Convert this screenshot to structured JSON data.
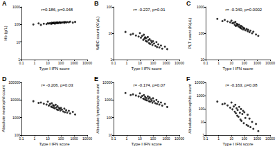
{
  "chart_data": [
    {
      "type": "scatter",
      "title": "A",
      "annotation": "r=0.186, p=0.048",
      "x_label": "Type I IFN score",
      "y_label": "Hb (g/L)",
      "x": [
        3,
        5,
        8,
        10,
        12,
        15,
        18,
        20,
        22,
        25,
        28,
        30,
        35,
        40,
        45,
        50,
        55,
        60,
        70,
        80,
        90,
        100,
        120,
        150,
        180,
        200,
        250,
        300,
        400,
        500,
        800,
        1200,
        0.8,
        2
      ],
      "values": [
        95,
        110,
        105,
        118,
        112,
        120,
        108,
        125,
        115,
        122,
        118,
        130,
        110,
        125,
        128,
        120,
        132,
        118,
        126,
        135,
        122,
        130,
        128,
        136,
        124,
        140,
        130,
        138,
        132,
        145,
        128,
        140,
        100,
        115
      ],
      "color": "#000000",
      "marker": "circle",
      "log": true,
      "grid": false,
      "xlim": [
        0.1,
        10000
      ],
      "xticks": [
        0.1,
        1,
        10,
        100,
        1000,
        10000
      ],
      "ylim": [
        1,
        1000
      ],
      "yticks": [
        1,
        10,
        100,
        1000
      ]
    },
    {
      "type": "scatter",
      "title": "B",
      "annotation": "r= -0.237, p=0.01",
      "x_label": "Type I IFN score",
      "y_label": "WBC count (K/μL)",
      "x": [
        3,
        5,
        8,
        10,
        12,
        15,
        18,
        20,
        22,
        25,
        28,
        30,
        35,
        40,
        45,
        50,
        55,
        60,
        70,
        80,
        90,
        100,
        120,
        150,
        180,
        200,
        250,
        300,
        400,
        500,
        800,
        1200,
        0.8,
        2
      ],
      "values": [
        9.5,
        8.2,
        7.5,
        10.1,
        6.8,
        7.9,
        5.6,
        8.8,
        6.2,
        7.0,
        5.1,
        6.5,
        4.8,
        7.2,
        5.5,
        4.2,
        6.0,
        3.9,
        5.2,
        4.5,
        3.6,
        5.0,
        4.1,
        3.3,
        4.6,
        3.0,
        3.8,
        2.9,
        3.4,
        2.6,
        3.1,
        2.5,
        11.2,
        8.9
      ],
      "color": "#000000",
      "marker": "circle",
      "log": true,
      "grid": false,
      "xlim": [
        0.1,
        10000
      ],
      "xticks": [
        0.1,
        1,
        10,
        100,
        1000,
        10000
      ],
      "ylim": [
        1,
        100
      ],
      "yticks": [
        1,
        10,
        100
      ]
    },
    {
      "type": "scatter",
      "title": "C",
      "annotation": "r= -0.340, p=0.0002",
      "x_label": "Type I IFN score",
      "y_label": "PLT count (K/μL)",
      "x": [
        3,
        5,
        8,
        10,
        12,
        15,
        18,
        20,
        22,
        25,
        28,
        30,
        35,
        40,
        45,
        50,
        55,
        60,
        70,
        80,
        90,
        100,
        120,
        150,
        180,
        200,
        250,
        300,
        400,
        500,
        800,
        1200,
        0.8,
        2
      ],
      "values": [
        320,
        280,
        260,
        300,
        240,
        250,
        210,
        270,
        190,
        230,
        200,
        220,
        180,
        210,
        170,
        160,
        190,
        150,
        175,
        140,
        160,
        150,
        130,
        145,
        120,
        135,
        110,
        125,
        100,
        115,
        90,
        80,
        350,
        290
      ],
      "color": "#000000",
      "marker": "circle",
      "log": true,
      "grid": false,
      "xlim": [
        0.1,
        10000
      ],
      "xticks": [
        0.1,
        1,
        10,
        100,
        1000,
        10000
      ],
      "ylim": [
        10,
        1000
      ],
      "yticks": [
        10,
        100,
        1000
      ]
    },
    {
      "type": "scatter",
      "title": "D",
      "annotation": "r= -0.206, p=0.03",
      "x_label": "Type I IFN score",
      "y_label": "Absolute neutrophil count",
      "x": [
        3,
        5,
        8,
        10,
        12,
        15,
        18,
        20,
        22,
        25,
        28,
        30,
        35,
        40,
        45,
        50,
        55,
        60,
        70,
        80,
        90,
        100,
        120,
        150,
        180,
        200,
        250,
        300,
        400,
        500,
        800,
        1200,
        0.8,
        2
      ],
      "values": [
        7200,
        6100,
        5500,
        8000,
        4800,
        5900,
        4200,
        6500,
        3900,
        5100,
        3600,
        4700,
        3300,
        5300,
        3800,
        2900,
        4400,
        2700,
        3600,
        3100,
        2500,
        3500,
        2800,
        2200,
        3200,
        2000,
        2600,
        1900,
        2400,
        1700,
        2100,
        1500,
        8500,
        6800
      ],
      "color": "#000000",
      "marker": "circle",
      "log": true,
      "grid": false,
      "xlim": [
        0.1,
        10000
      ],
      "xticks": [
        0.1,
        1,
        10,
        100,
        1000,
        10000
      ],
      "ylim": [
        100,
        100000
      ],
      "yticks": [
        100,
        1000,
        10000,
        100000
      ]
    },
    {
      "type": "scatter",
      "title": "E",
      "annotation": "r= -0.174, p=0.07",
      "x_label": "Type I IFN score",
      "y_label": "Absolute lymphocyte count",
      "x": [
        3,
        5,
        8,
        10,
        12,
        15,
        18,
        20,
        22,
        25,
        28,
        30,
        35,
        40,
        45,
        50,
        55,
        60,
        70,
        80,
        90,
        100,
        120,
        150,
        180,
        200,
        250,
        300,
        400,
        500,
        800,
        1200,
        0.8,
        2
      ],
      "values": [
        2100,
        1800,
        1600,
        2400,
        1400,
        1700,
        1200,
        1900,
        1100,
        1500,
        1000,
        1300,
        950,
        1600,
        1200,
        850,
        1400,
        800,
        1100,
        900,
        700,
        1250,
        850,
        650,
        1000,
        600,
        780,
        550,
        720,
        480,
        600,
        400,
        2500,
        1900
      ],
      "color": "#000000",
      "marker": "circle",
      "log": true,
      "grid": false,
      "xlim": [
        0.1,
        10000
      ],
      "xticks": [
        0.1,
        1,
        10,
        100,
        1000,
        10000
      ],
      "ylim": [
        10,
        10000
      ],
      "yticks": [
        10,
        100,
        1000,
        10000
      ]
    },
    {
      "type": "scatter",
      "title": "F",
      "annotation": "r= -0.163, p=0.08",
      "x_label": "Type I IFN score",
      "y_label": "Absolute eosinophils count",
      "x": [
        3,
        5,
        8,
        10,
        12,
        15,
        18,
        20,
        22,
        25,
        28,
        30,
        35,
        40,
        45,
        50,
        55,
        60,
        70,
        80,
        90,
        100,
        120,
        150,
        180,
        200,
        250,
        300,
        400,
        500,
        800,
        1200,
        0.8,
        2
      ],
      "values": [
        250,
        180,
        120,
        300,
        90,
        150,
        60,
        200,
        45,
        110,
        30,
        80,
        25,
        140,
        50,
        15,
        95,
        12,
        40,
        70,
        8,
        55,
        20,
        6,
        35,
        5,
        18,
        4,
        10,
        3,
        7,
        2,
        350,
        220
      ],
      "color": "#000000",
      "marker": "circle",
      "log": true,
      "grid": false,
      "xlim": [
        0.1,
        10000
      ],
      "xticks": [
        0.1,
        1,
        10,
        100,
        1000,
        10000
      ],
      "ylim": [
        1,
        10000
      ],
      "yticks": [
        1,
        10,
        100,
        1000,
        10000
      ]
    }
  ]
}
